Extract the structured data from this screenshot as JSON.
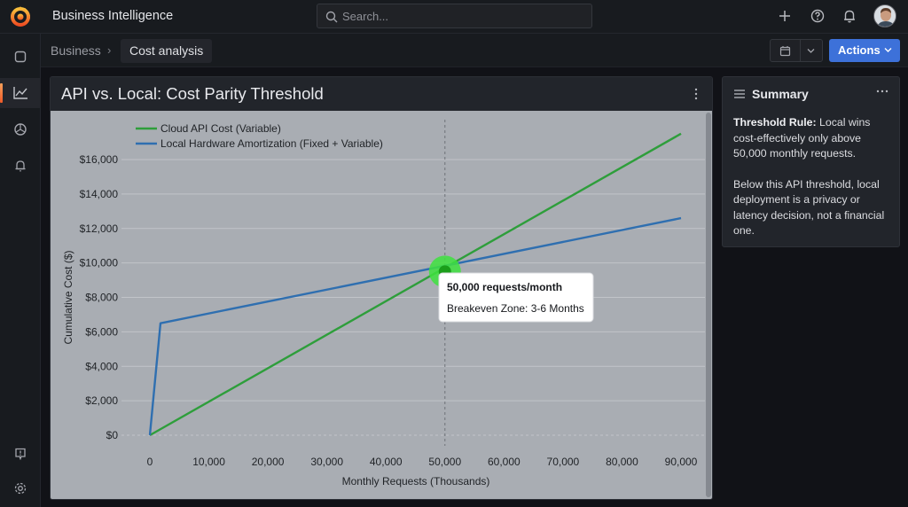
{
  "topbar": {
    "app_title": "Business Intelligence",
    "search_placeholder": "Search..."
  },
  "breadcrumb": {
    "parent": "Business",
    "separator": "›",
    "current": "Cost analysis"
  },
  "toolbar": {
    "actions_label": "Actions"
  },
  "panel": {
    "title": "API vs. Local: Cost Parity Threshold"
  },
  "summary": {
    "title": "Summary",
    "rule_label": "Threshold Rule:",
    "rule_text": " Local wins cost-effectively only above 50,000 monthly requests.",
    "note": "Below this API threshold, local deployment is a privacy or latency decision, not a financial one."
  },
  "icons": {
    "logo": "grafana-logo",
    "search": "search-icon",
    "add": "plus-icon",
    "help": "help-icon",
    "notifications": "bell-icon",
    "sidebar": [
      "home-icon",
      "chart-icon",
      "explore-icon",
      "alerts-icon",
      "feedback-icon",
      "settings-icon"
    ]
  },
  "colors": {
    "accent": "#3d71d9",
    "cloud_series": "#2e9e3b",
    "local_series": "#2f6fb0",
    "highlight": "#3ee23e"
  },
  "chart_data": {
    "type": "line",
    "title": "API vs. Local: Cost Parity Threshold",
    "xlabel": "Monthly Requests (Thousands)",
    "ylabel": "Cumulative Cost ($)",
    "xlim": [
      0,
      90000
    ],
    "ylim": [
      0,
      16000
    ],
    "x_ticks": [
      0,
      10000,
      20000,
      30000,
      40000,
      50000,
      60000,
      70000,
      80000,
      90000
    ],
    "x_tick_labels": [
      "0",
      "10,000",
      "20,000",
      "30,000",
      "40,000",
      "50,000",
      "60,000",
      "70,000",
      "80,000",
      "90,000"
    ],
    "y_ticks": [
      0,
      2000,
      4000,
      6000,
      8000,
      10000,
      12000,
      14000,
      16000
    ],
    "y_tick_labels": [
      "$0",
      "$2,000",
      "$4,000",
      "$6,000",
      "$8,000",
      "$10,000",
      "$12,000",
      "$14,000",
      "$16,000"
    ],
    "grid": true,
    "legend_position": "top-left",
    "series": [
      {
        "name": "Cloud API Cost (Variable)",
        "color": "#2e9e3b",
        "x": [
          0,
          90000
        ],
        "y": [
          0,
          17500
        ]
      },
      {
        "name": "Local Hardware Amortization (Fixed + Variable)",
        "color": "#2f6fb0",
        "x": [
          0,
          1800,
          90000
        ],
        "y": [
          0,
          6500,
          12600
        ]
      }
    ],
    "annotations": [
      {
        "x": 50000,
        "y": 9500,
        "marker": "breakeven",
        "vertical_line": true,
        "title": "50,000 requests/month",
        "text": "Breakeven Zone: 3-6 Months"
      }
    ]
  }
}
